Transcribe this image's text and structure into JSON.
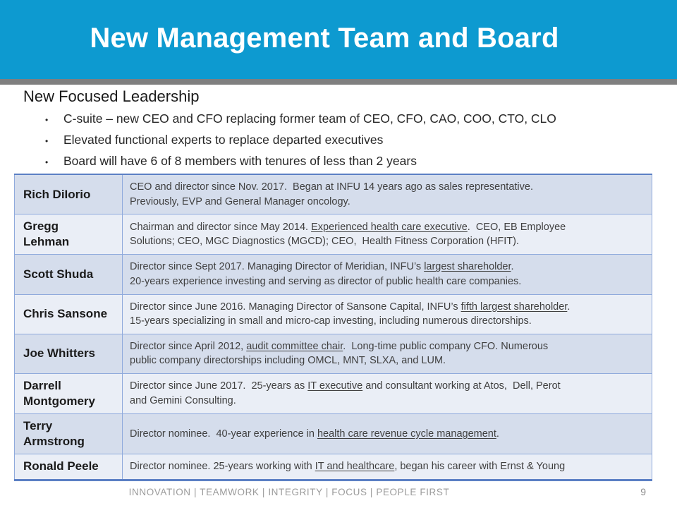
{
  "slide": {
    "title": "New Management Team and Board",
    "page_number": "9"
  },
  "leadership": {
    "heading": "New Focused Leadership",
    "bullet_char": "•",
    "bullets": [
      "C-suite – new CEO and CFO replacing former team of CEO, CFO, CAO, COO, CTO, CLO",
      "Elevated functional experts to replace departed executives",
      "Board will have 6 of 8 members with tenures of less than 2 years"
    ]
  },
  "board_table": {
    "rows": [
      {
        "name": "Rich DiIorio",
        "description": [
          {
            "t": "CEO and director since Nov. 2017.  Began at INFU 14 years ago as sales representative.\nPreviously, EVP and General Manager oncology.",
            "u": false
          }
        ]
      },
      {
        "name": "Gregg\nLehman",
        "description": [
          {
            "t": "Chairman and director since May 2014. ",
            "u": false
          },
          {
            "t": "Experienced health care executive",
            "u": true
          },
          {
            "t": ".  CEO, EB Employee\nSolutions; CEO, MGC Diagnostics (MGCD); CEO,  Health Fitness Corporation (HFIT).",
            "u": false
          }
        ]
      },
      {
        "name": "Scott Shuda",
        "description": [
          {
            "t": "Director since Sept 2017. Managing Director of Meridian, INFU’s ",
            "u": false
          },
          {
            "t": "largest shareholder",
            "u": true
          },
          {
            "t": ".\n20-years experience investing and serving as director of public health care companies.",
            "u": false
          }
        ]
      },
      {
        "name": "Chris Sansone",
        "description": [
          {
            "t": "Director since June 2016. Managing Director of Sansone Capital, INFU’s ",
            "u": false
          },
          {
            "t": "fifth largest shareholder",
            "u": true
          },
          {
            "t": ".\n15-years specializing in small and micro-cap investing, including numerous directorships.",
            "u": false
          }
        ]
      },
      {
        "name": "Joe Whitters",
        "description": [
          {
            "t": "Director since April 2012, ",
            "u": false
          },
          {
            "t": "audit committee chair",
            "u": true
          },
          {
            "t": ".  Long-time public company CFO. Numerous\npublic company directorships including OMCL, MNT, SLXA, and LUM.",
            "u": false
          }
        ]
      },
      {
        "name": "Darrell\nMontgomery",
        "description": [
          {
            "t": "Director since June 2017.  25-years as ",
            "u": false
          },
          {
            "t": "IT executive",
            "u": true
          },
          {
            "t": " and consultant working at Atos,  Dell, Perot\nand Gemini Consulting.",
            "u": false
          }
        ]
      },
      {
        "name": "Terry\nArmstrong",
        "description": [
          {
            "t": "Director nominee.  40-year experience in ",
            "u": false
          },
          {
            "t": "health care revenue cycle management",
            "u": true
          },
          {
            "t": ".",
            "u": false
          }
        ]
      },
      {
        "name": "Ronald Peele",
        "description": [
          {
            "t": "Director nominee. 25-years working with ",
            "u": false
          },
          {
            "t": "IT and healthcare",
            "u": true
          },
          {
            "t": ", began his career with Ernst & Young",
            "u": false
          }
        ]
      }
    ]
  },
  "footer": {
    "values": [
      "INNOVATION",
      "TEAMWORK",
      "INTEGRITY",
      "FOCUS",
      "PEOPLE FIRST"
    ],
    "separator": "|"
  },
  "colors": {
    "header-blue": "#0D9AD0",
    "divider-gray": "#7F7F7F",
    "row-dark": "#D5DDEC",
    "row-light": "#EAEEF6",
    "table-border": "#8FAADC",
    "table-border-heavy": "#5B7FC4",
    "desc-text": "#404040",
    "footer-gray": "#9B9B9B"
  }
}
